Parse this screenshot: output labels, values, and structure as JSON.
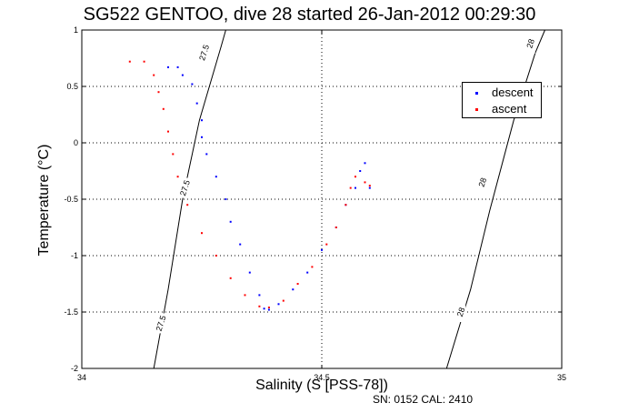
{
  "title": "SG522 GENTOO, dive 28 started 26-Jan-2012 00:29:30",
  "footer": "SN: 0152  CAL: 2410",
  "chart_data": {
    "type": "scatter",
    "xlabel": "Salinity (S [PSS-78])",
    "ylabel": "Temperature (°C)",
    "xlim": [
      34,
      35
    ],
    "ylim": [
      -2,
      1
    ],
    "xticks": [
      "34",
      "34.5",
      "35"
    ],
    "yticks": [
      "-2",
      "-1.5",
      "-1",
      "-0.5",
      "0",
      "0.5",
      "1"
    ],
    "grid": true,
    "legend_position": "top-right",
    "series": [
      {
        "name": "descent",
        "color": "#0000ff",
        "points": [
          [
            34.18,
            0.67
          ],
          [
            34.2,
            0.67
          ],
          [
            34.21,
            0.6
          ],
          [
            34.23,
            0.52
          ],
          [
            34.24,
            0.35
          ],
          [
            34.25,
            0.2
          ],
          [
            34.25,
            0.05
          ],
          [
            34.26,
            -0.1
          ],
          [
            34.28,
            -0.3
          ],
          [
            34.3,
            -0.5
          ],
          [
            34.31,
            -0.7
          ],
          [
            34.33,
            -0.9
          ],
          [
            34.35,
            -1.15
          ],
          [
            34.37,
            -1.35
          ],
          [
            34.38,
            -1.47
          ],
          [
            34.39,
            -1.48
          ],
          [
            34.41,
            -1.43
          ],
          [
            34.44,
            -1.3
          ],
          [
            34.47,
            -1.15
          ],
          [
            34.5,
            -0.95
          ],
          [
            34.53,
            -0.75
          ],
          [
            34.55,
            -0.55
          ],
          [
            34.57,
            -0.4
          ],
          [
            34.58,
            -0.25
          ],
          [
            34.59,
            -0.18
          ],
          [
            34.6,
            -0.4
          ]
        ]
      },
      {
        "name": "ascent",
        "color": "#ff0000",
        "points": [
          [
            34.1,
            0.72
          ],
          [
            34.13,
            0.72
          ],
          [
            34.15,
            0.6
          ],
          [
            34.16,
            0.45
          ],
          [
            34.17,
            0.3
          ],
          [
            34.18,
            0.1
          ],
          [
            34.19,
            -0.1
          ],
          [
            34.2,
            -0.3
          ],
          [
            34.22,
            -0.55
          ],
          [
            34.25,
            -0.8
          ],
          [
            34.28,
            -1.0
          ],
          [
            34.31,
            -1.2
          ],
          [
            34.34,
            -1.35
          ],
          [
            34.37,
            -1.45
          ],
          [
            34.39,
            -1.46
          ],
          [
            34.42,
            -1.4
          ],
          [
            34.45,
            -1.25
          ],
          [
            34.48,
            -1.1
          ],
          [
            34.51,
            -0.9
          ],
          [
            34.53,
            -0.75
          ],
          [
            34.55,
            -0.55
          ],
          [
            34.56,
            -0.4
          ],
          [
            34.57,
            -0.3
          ],
          [
            34.59,
            -0.35
          ],
          [
            34.6,
            -0.38
          ]
        ]
      }
    ],
    "contours": [
      {
        "label": "27.5",
        "points": [
          [
            34.15,
            -2
          ],
          [
            34.18,
            -1.3
          ],
          [
            34.21,
            -0.5
          ],
          [
            34.245,
            0.2
          ],
          [
            34.29,
            0.85
          ],
          [
            34.3,
            1
          ]
        ],
        "label_positions": [
          [
            34.255,
            0.8
          ],
          [
            34.215,
            -0.4
          ],
          [
            34.165,
            -1.6
          ]
        ]
      },
      {
        "label": "28",
        "points": [
          [
            34.76,
            -2
          ],
          [
            34.81,
            -1.3
          ],
          [
            34.85,
            -0.6
          ],
          [
            34.9,
            0.2
          ],
          [
            34.945,
            0.8
          ],
          [
            34.965,
            1
          ]
        ],
        "label_positions": [
          [
            34.935,
            0.88
          ],
          [
            34.835,
            -0.35
          ],
          [
            34.79,
            -1.5
          ]
        ]
      }
    ]
  }
}
